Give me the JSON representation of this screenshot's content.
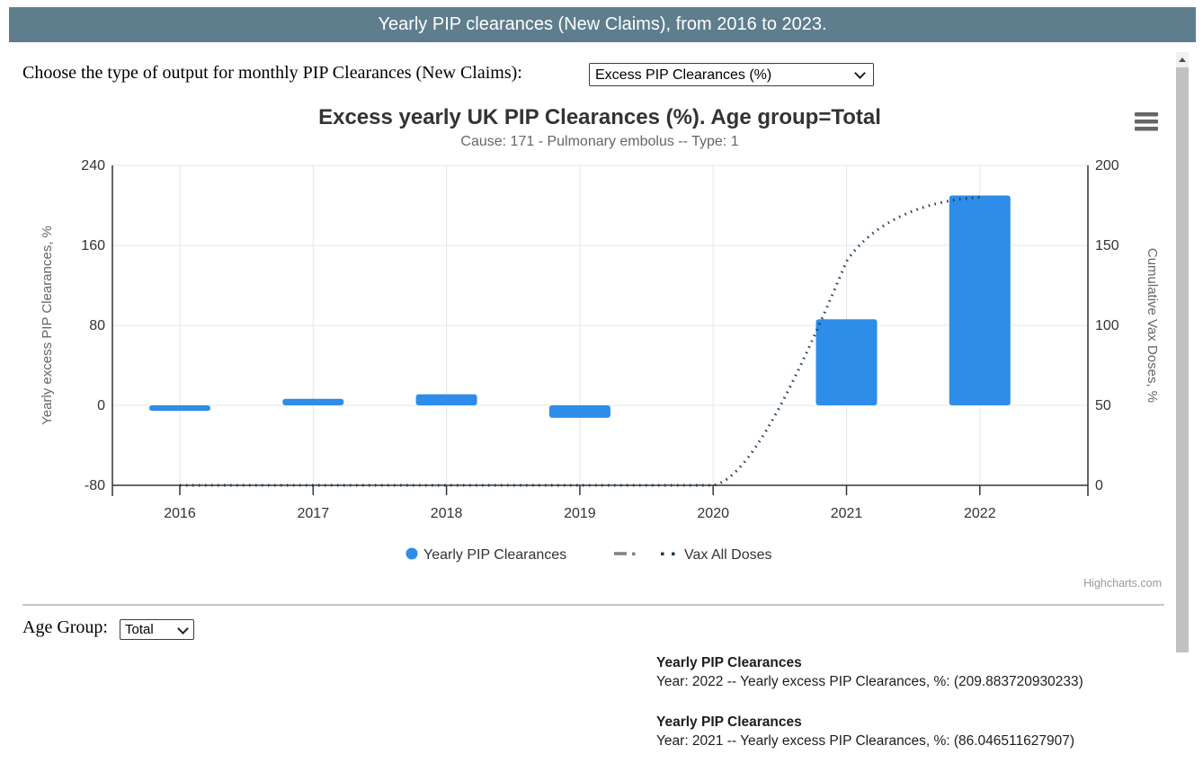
{
  "header": {
    "title": "Yearly PIP clearances (New Claims), from 2016 to 2023.",
    "background_color": "#5e7e8d"
  },
  "controls": {
    "output_label": "Choose the type of output for monthly PIP Clearances (New Claims):",
    "output_selected": "Excess PIP Clearances (%)",
    "age_group_label": "Age Group:",
    "age_group_selected": "Total"
  },
  "icons": {
    "chart_menu": "hamburger-icon",
    "select_chevron": "chevron-down-icon",
    "scrollbar_up": "triangle-up-icon"
  },
  "chart_data": {
    "type": "combo",
    "title": "Excess yearly UK PIP Clearances (%). Age group=Total",
    "subtitle": "Cause: 171 - Pulmonary embolus -- Type: 1",
    "categories": [
      "2016",
      "2017",
      "2018",
      "2019",
      "2020",
      "2021",
      "2022"
    ],
    "series": [
      {
        "name": "Yearly PIP Clearances",
        "type": "column",
        "axis": "left",
        "color": "#2d8de8",
        "values": [
          -5.5,
          6.5,
          11,
          -12.5,
          0,
          86.046511627907,
          209.883720930233
        ]
      },
      {
        "name": "Vax All Doses",
        "type": "line",
        "dash": "dot",
        "axis": "right",
        "color": "#1b3a5c",
        "legend_dash_color": "#808080",
        "values": [
          0,
          0,
          0,
          0,
          0,
          140,
          180
        ]
      }
    ],
    "yaxis_left": {
      "title": "Yearly excess PIP Clearances, %",
      "min": -80,
      "max": 240,
      "ticks": [
        -80,
        0,
        80,
        160,
        240
      ]
    },
    "yaxis_right": {
      "title": "Cumulative Vax Doses, %",
      "min": 0,
      "max": 200,
      "ticks": [
        0,
        50,
        100,
        150,
        200
      ]
    },
    "xlabel": "",
    "grid": true,
    "legend_position": "bottom",
    "credit": "Highcharts.com",
    "colors": {
      "grid": "#e6e6e6",
      "axis_line": "#333333",
      "tick_text": "#333333",
      "axis_title_text": "#666666",
      "title_text": "#333333",
      "subtitle_text": "#666666",
      "credit_text": "#999999",
      "menu_icon": "#666666"
    }
  },
  "info_panel": {
    "entries": [
      {
        "heading": "Yearly PIP Clearances",
        "line": "Year: 2022 -- Yearly excess PIP Clearances, %: (209.883720930233)"
      },
      {
        "heading": "Yearly PIP Clearances",
        "line": "Year: 2021 -- Yearly excess PIP Clearances, %: (86.046511627907)"
      }
    ]
  }
}
